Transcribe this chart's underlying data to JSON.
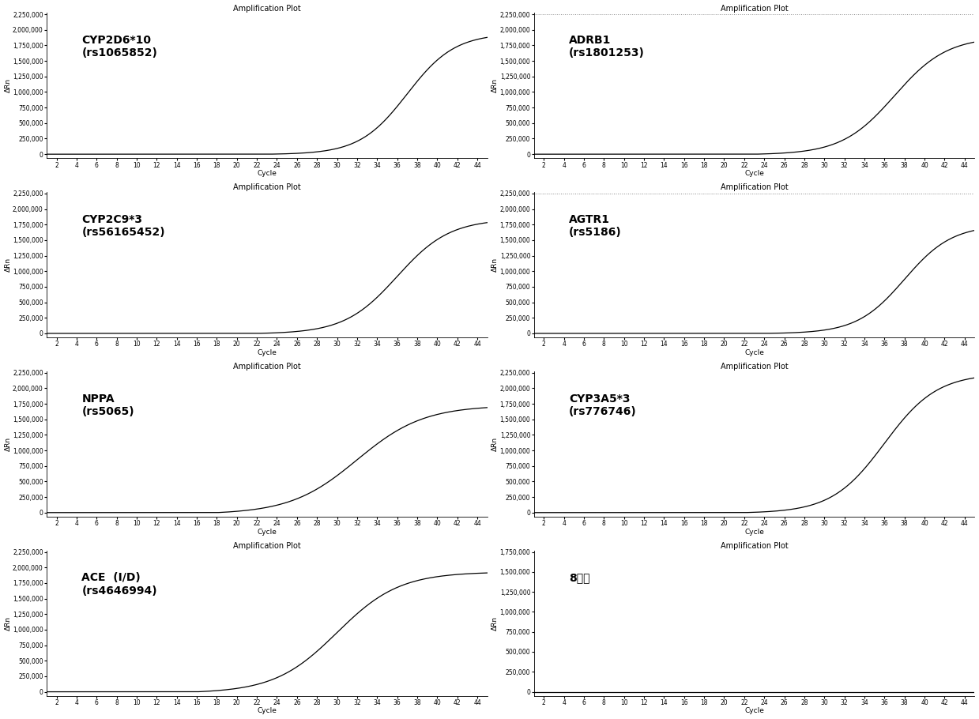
{
  "subplots": [
    {
      "label": "CYP2D6*10\n(rs1065852)",
      "ylim_max": 2250000,
      "yticks": [
        0,
        250000,
        500000,
        750000,
        1000000,
        1250000,
        1500000,
        1750000,
        2000000,
        2250000
      ],
      "rise_start": 27,
      "max_val": 1950000,
      "has_dotted_top": false,
      "steepness": 0.42
    },
    {
      "label": "ADRB1\n(rs1801253)",
      "ylim_max": 2250000,
      "yticks": [
        0,
        250000,
        500000,
        750000,
        1000000,
        1250000,
        1500000,
        1750000,
        2000000,
        2250000
      ],
      "rise_start": 27,
      "max_val": 1900000,
      "has_dotted_top": true,
      "steepness": 0.38
    },
    {
      "label": "CYP2C9*3\n(rs56165452)",
      "ylim_max": 2250000,
      "yticks": [
        0,
        250000,
        500000,
        750000,
        1000000,
        1250000,
        1500000,
        1750000,
        2000000,
        2250000
      ],
      "rise_start": 26,
      "max_val": 1850000,
      "has_dotted_top": false,
      "steepness": 0.38
    },
    {
      "label": "AGTR1\n(rs5186)",
      "ylim_max": 2250000,
      "yticks": [
        0,
        250000,
        500000,
        750000,
        1000000,
        1250000,
        1500000,
        1750000,
        2000000,
        2250000
      ],
      "rise_start": 28,
      "max_val": 1750000,
      "has_dotted_top": true,
      "steepness": 0.42
    },
    {
      "label": "NPPA\n(rs5065)",
      "ylim_max": 2250000,
      "yticks": [
        0,
        250000,
        500000,
        750000,
        1000000,
        1250000,
        1500000,
        1750000,
        2000000,
        2250000
      ],
      "rise_start": 22,
      "max_val": 1750000,
      "has_dotted_top": false,
      "steepness": 0.3
    },
    {
      "label": "CYP3A5*3\n(rs776746)",
      "ylim_max": 2250000,
      "yticks": [
        0,
        250000,
        500000,
        750000,
        1000000,
        1250000,
        1500000,
        1750000,
        2000000,
        2250000
      ],
      "rise_start": 26,
      "max_val": 2250000,
      "has_dotted_top": false,
      "steepness": 0.38
    },
    {
      "label": "ACE  (I/D)\n(rs4646994)",
      "ylim_max": 2250000,
      "yticks": [
        0,
        250000,
        500000,
        750000,
        1000000,
        1250000,
        1500000,
        1750000,
        2000000,
        2250000
      ],
      "rise_start": 20,
      "max_val": 1950000,
      "has_dotted_top": false,
      "steepness": 0.32
    },
    {
      "label": "8号管",
      "ylim_max": 1750000,
      "yticks": [
        0,
        250000,
        500000,
        750000,
        1000000,
        1250000,
        1500000,
        1750000
      ],
      "rise_start": null,
      "max_val": 0,
      "has_dotted_top": false,
      "steepness": 0
    }
  ],
  "xlim": [
    1,
    45
  ],
  "xticks": [
    2,
    4,
    6,
    8,
    10,
    12,
    14,
    16,
    18,
    20,
    22,
    24,
    26,
    28,
    30,
    32,
    34,
    36,
    38,
    40,
    42,
    44
  ],
  "xlabel": "Cycle",
  "ylabel": "ΔRn",
  "title": "Amplification Plot",
  "bg_color": "#ffffff",
  "line_color": "#000000",
  "title_fontsize": 7,
  "label_fontsize": 6.5,
  "tick_fontsize": 5.5,
  "annotation_fontsize": 10
}
